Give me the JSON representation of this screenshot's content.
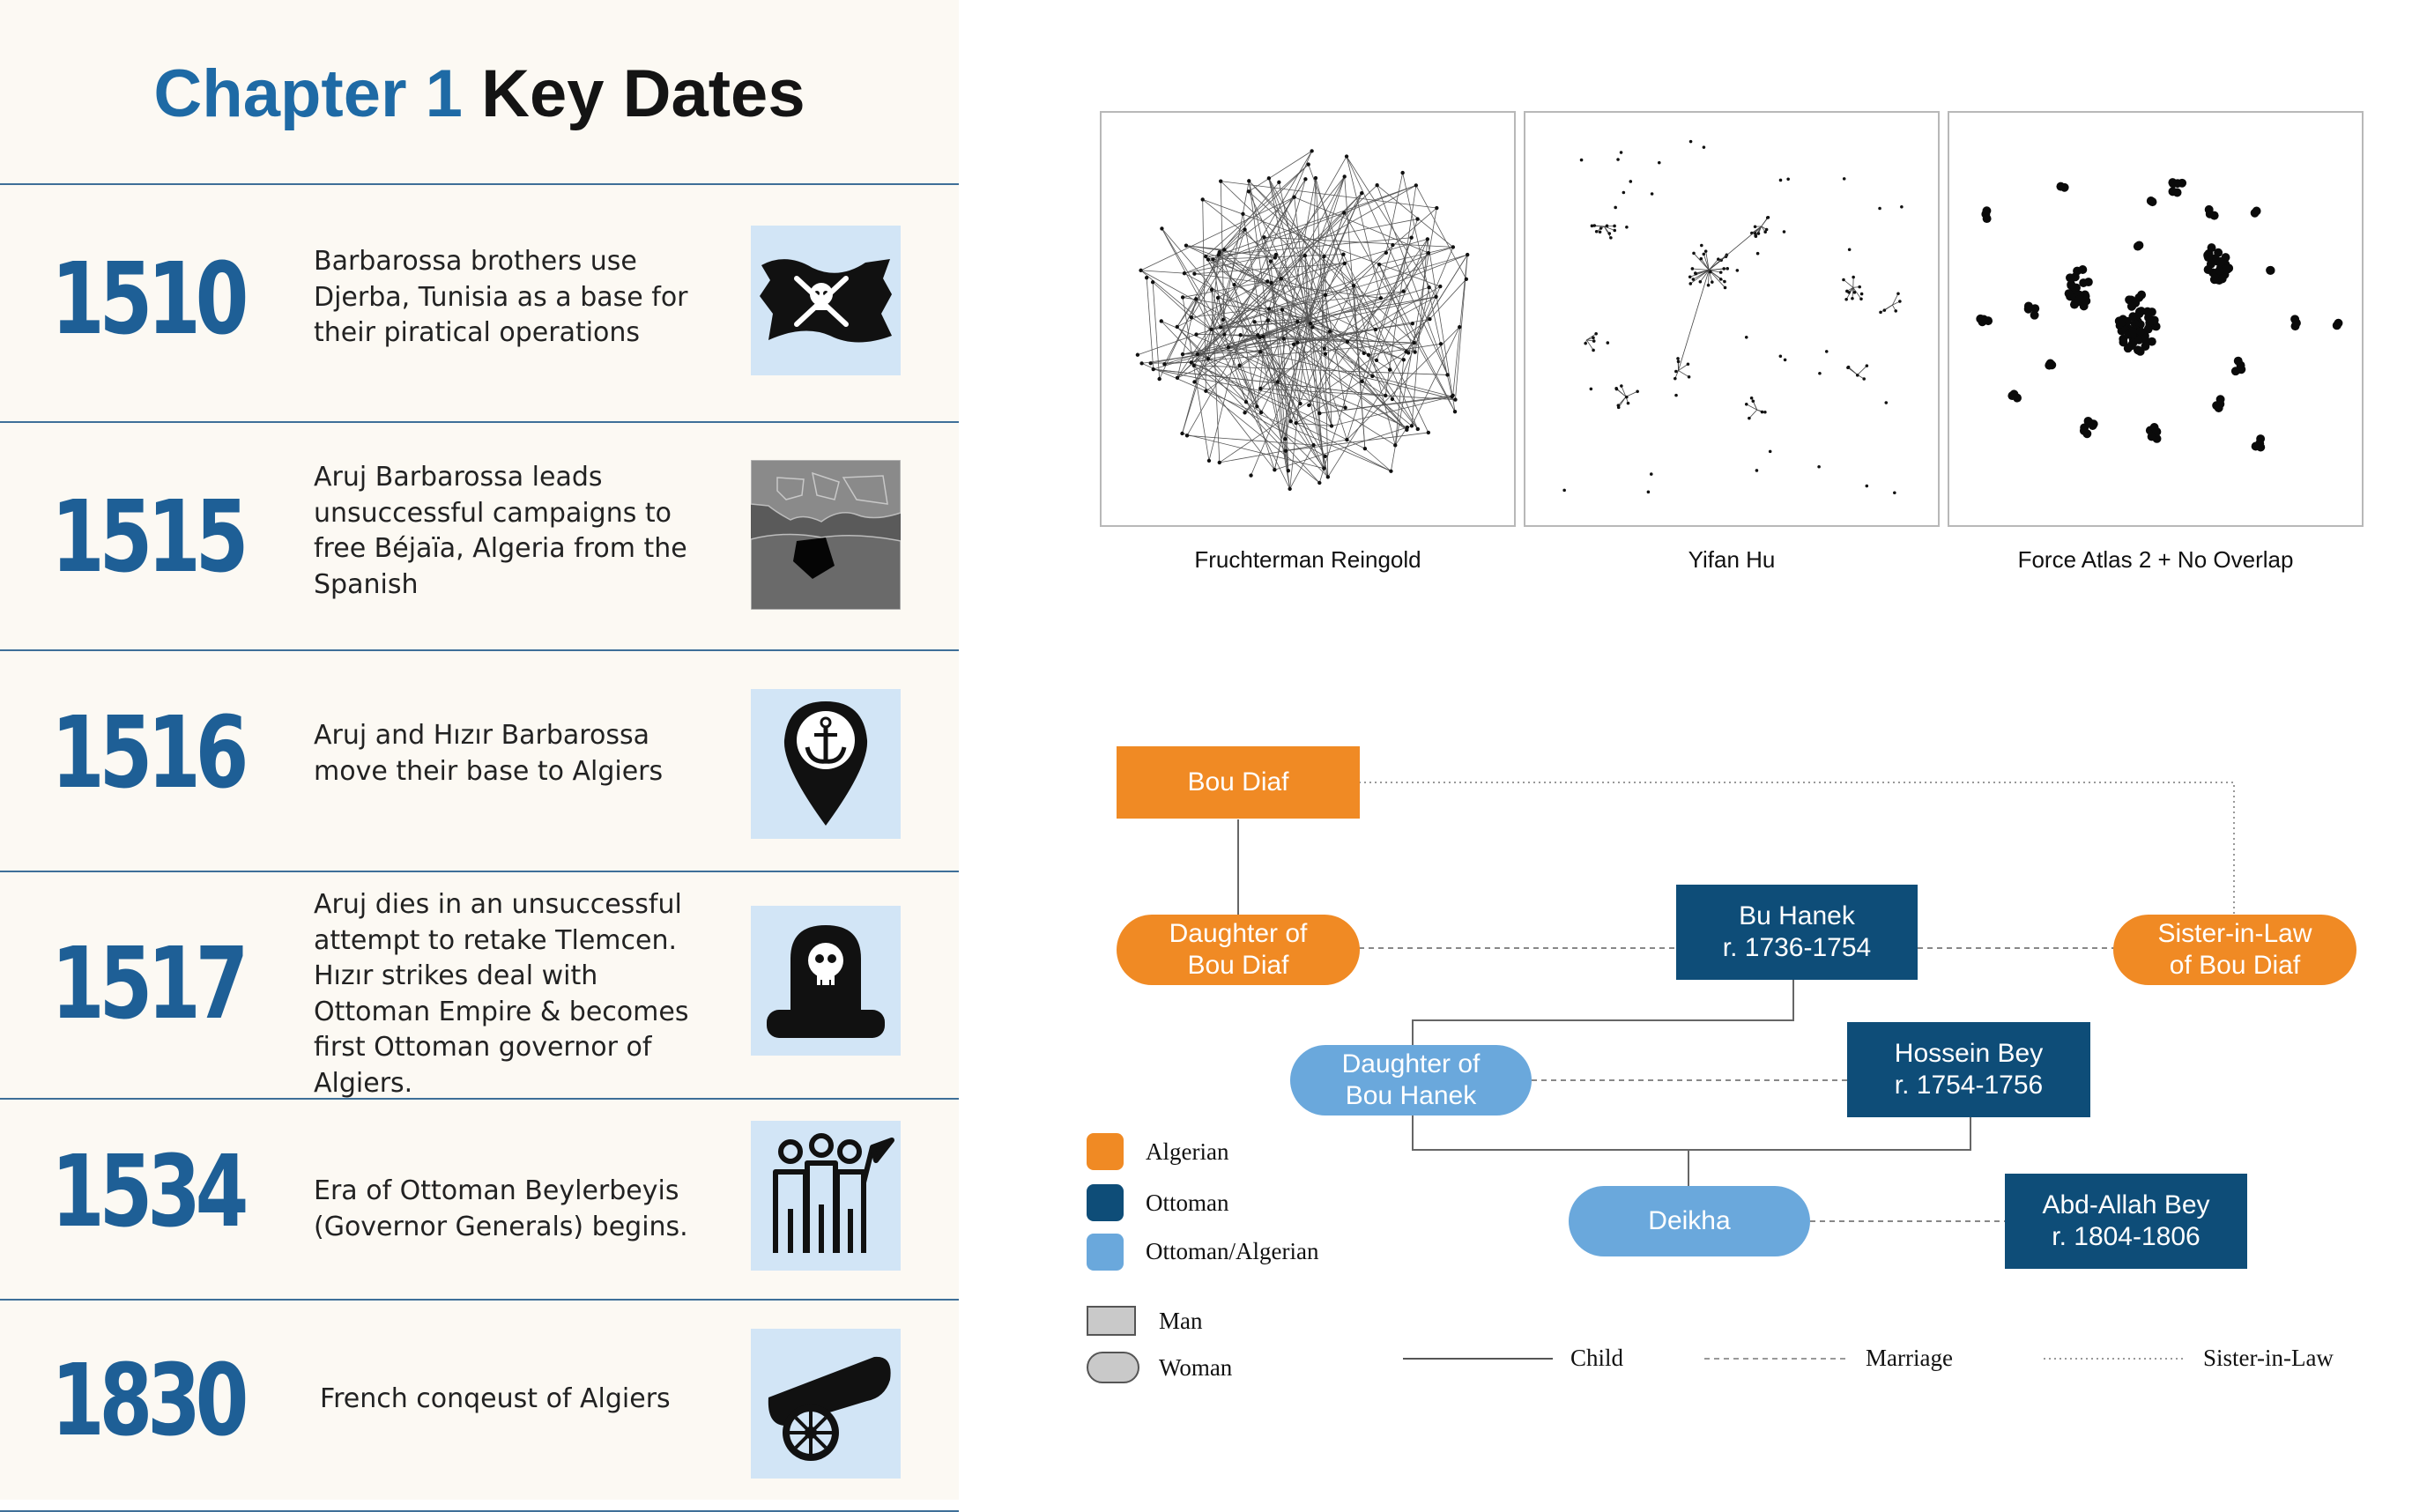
{
  "title": {
    "part1": "Chapter 1",
    "part2": "Key Dates"
  },
  "timeline": [
    {
      "year": "1510",
      "text": "Barbarossa brothers use Djerba, Tunisia as a base for their piratical operations",
      "icon": "pirate-flag-icon"
    },
    {
      "year": "1515",
      "text": "Aruj Barbarossa leads unsuccessful campaigns to free Béjaïa, Algeria from the Spanish",
      "icon": "mediterranean-map-icon"
    },
    {
      "year": "1516",
      "text": "Aruj and Hızır Barbarossa move their base to Algiers",
      "icon": "anchor-location-pin-icon"
    },
    {
      "year": "1517",
      "text": "Aruj dies in an unsuccessful attempt to retake Tlemcen. Hızır strikes deal with Ottoman Empire & becomes first Ottoman governor of Algiers.",
      "icon": "tombstone-skull-icon"
    },
    {
      "year": "1534",
      "text": "Era of Ottoman Beylerbeyis (Governor Generals) begins.",
      "icon": "group-flag-icon"
    },
    {
      "year": "1830",
      "text": "French conqeust of Algiers",
      "icon": "cannon-icon"
    }
  ],
  "layouts": {
    "captions": [
      "Fruchterman Reingold",
      "Yifan Hu",
      "Force Atlas 2 + No Overlap"
    ]
  },
  "family_tree": {
    "nodes": {
      "bou_diaf": {
        "label": "Bou Diaf",
        "type": "Algerian",
        "gender": "Man"
      },
      "daughter_bou_diaf": {
        "label": "Daughter of\nBou Diaf",
        "type": "Algerian",
        "gender": "Woman"
      },
      "bu_hanek": {
        "label": "Bu Hanek\nr. 1736-1754",
        "type": "Ottoman",
        "gender": "Man"
      },
      "sister_in_law": {
        "label": "Sister-in-Law\nof Bou Diaf",
        "type": "Algerian",
        "gender": "Woman"
      },
      "daughter_bou_hanek": {
        "label": "Daughter of\nBou Hanek",
        "type": "Ottoman/Algerian",
        "gender": "Woman"
      },
      "hossein_bey": {
        "label": "Hossein Bey\nr. 1754-1756",
        "type": "Ottoman",
        "gender": "Man"
      },
      "deikha": {
        "label": "Deikha",
        "type": "Ottoman/Algerian",
        "gender": "Woman"
      },
      "abd_allah_bey": {
        "label": "Abd-Allah Bey\nr. 1804-1806",
        "type": "Ottoman",
        "gender": "Man"
      }
    },
    "legend": {
      "types": [
        {
          "label": "Algerian",
          "color": "#f08a24"
        },
        {
          "label": "Ottoman",
          "color": "#0e4d78"
        },
        {
          "label": "Ottoman/Algerian",
          "color": "#6aa8dc"
        }
      ],
      "shapes": [
        {
          "label": "Man"
        },
        {
          "label": "Woman"
        }
      ],
      "edges": [
        {
          "label": "Child",
          "style": "solid"
        },
        {
          "label": "Marriage",
          "style": "dashed"
        },
        {
          "label": "Sister-in-Law",
          "style": "dotted"
        }
      ]
    }
  },
  "colors": {
    "title_blue": "#1e6aa5",
    "year_blue": "#1e5f96",
    "algerian": "#f08a24",
    "ottoman": "#0e4d78",
    "ottoman_algerian": "#6aa8dc",
    "icon_bg": "#d2e5f6"
  }
}
